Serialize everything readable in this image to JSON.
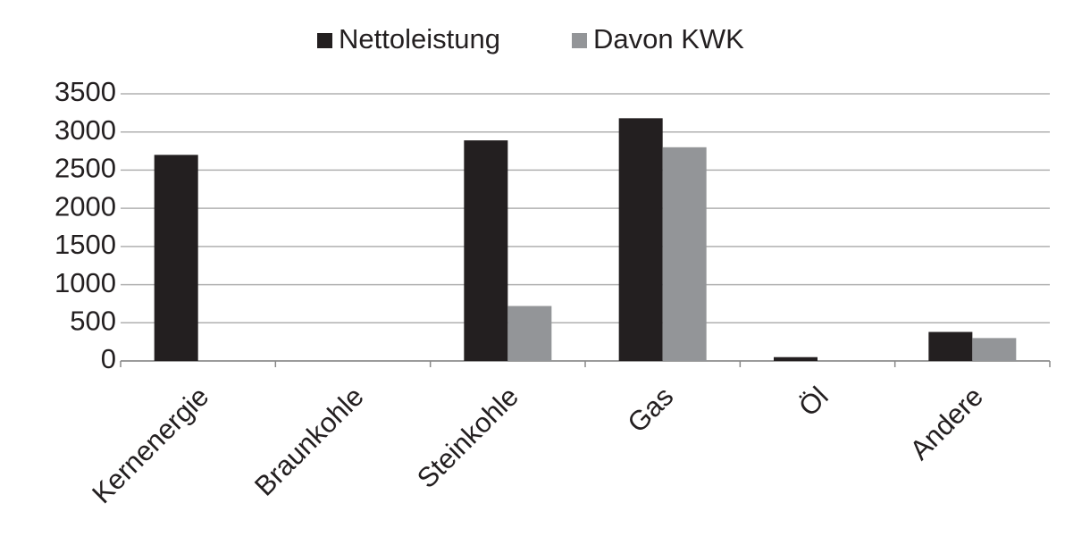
{
  "chart_data": {
    "type": "bar",
    "categories": [
      "Kernenergie",
      "Braunkohle",
      "Steinkohle",
      "Gas",
      "Öl",
      "Andere"
    ],
    "series": [
      {
        "name": "Nettoleistung",
        "color": "#231f20",
        "values": [
          2700,
          0,
          2890,
          3180,
          50,
          380
        ]
      },
      {
        "name": "Davon KWK",
        "color": "#939598",
        "values": [
          0,
          0,
          720,
          2800,
          0,
          300
        ]
      }
    ],
    "ylim": [
      0,
      3500
    ],
    "yticks": [
      0,
      500,
      1000,
      1500,
      2000,
      2500,
      3000,
      3500
    ],
    "grid": true,
    "legend": "top"
  }
}
